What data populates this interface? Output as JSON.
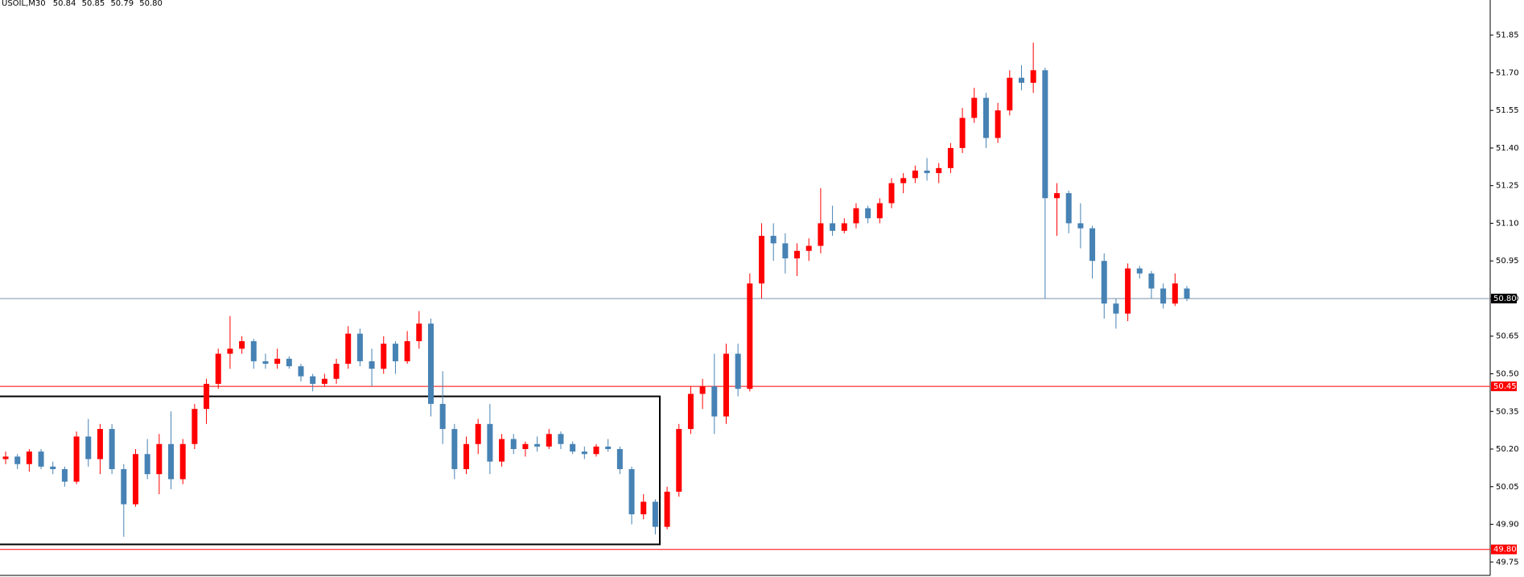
{
  "chart_data": {
    "type": "candlestick",
    "header": {
      "symbol": "USOIL,M30",
      "ohlc": [
        "50.84",
        "50.85",
        "50.79",
        "50.80"
      ]
    },
    "up_color": "#ff0000",
    "down_color": "#4682b4",
    "ylim": [
      49.69,
      51.99
    ],
    "yticks": [
      49.75,
      {
        "value": 49.9,
        "label": "49.90"
      },
      50.05,
      {
        "value": 50.2,
        "label": "50.20"
      },
      50.35,
      {
        "value": 50.5,
        "label": "50.50"
      },
      50.65,
      {
        "value": 50.8,
        "label": "50.80"
      },
      50.95,
      {
        "value": 51.1,
        "label": "51.10"
      },
      51.25,
      {
        "value": 51.4,
        "label": "51.40"
      },
      51.55,
      {
        "value": 51.7,
        "label": "51.70"
      },
      51.85
    ],
    "levels": [
      {
        "value": 50.45,
        "color": "#ff0000"
      },
      {
        "value": 49.8,
        "label": "49.80",
        "color": "#ff0000"
      }
    ],
    "current_price": {
      "value": 50.8,
      "label": "50.80",
      "color": "#7c93a8"
    },
    "rectangle": {
      "top": 50.41,
      "bottom": 49.82
    },
    "candles": [
      [
        50.16,
        50.19,
        50.14,
        50.17
      ],
      [
        50.17,
        50.18,
        50.12,
        50.14
      ],
      [
        50.14,
        50.2,
        50.11,
        50.19
      ],
      [
        50.19,
        50.2,
        50.12,
        50.13
      ],
      [
        50.13,
        50.15,
        50.1,
        50.12
      ],
      [
        50.12,
        50.13,
        50.05,
        50.07
      ],
      [
        50.07,
        50.27,
        50.06,
        50.25
      ],
      [
        50.25,
        50.32,
        50.13,
        50.16
      ],
      [
        50.16,
        50.3,
        50.1,
        50.28
      ],
      [
        50.28,
        50.3,
        50.1,
        50.12
      ],
      [
        50.12,
        50.14,
        49.85,
        49.98
      ],
      [
        49.98,
        50.2,
        49.97,
        50.18
      ],
      [
        50.18,
        50.24,
        50.08,
        50.1
      ],
      [
        50.1,
        50.26,
        50.02,
        50.22
      ],
      [
        50.22,
        50.35,
        50.04,
        50.08
      ],
      [
        50.08,
        50.24,
        50.06,
        50.22
      ],
      [
        50.22,
        50.38,
        50.2,
        50.36
      ],
      [
        50.36,
        50.48,
        50.3,
        50.46
      ],
      [
        50.46,
        50.6,
        50.44,
        50.58
      ],
      [
        50.58,
        50.73,
        50.52,
        50.6
      ],
      [
        50.6,
        50.65,
        50.58,
        50.63
      ],
      [
        50.63,
        50.64,
        50.52,
        50.55
      ],
      [
        50.55,
        50.58,
        50.52,
        50.54
      ],
      [
        50.54,
        50.6,
        50.52,
        50.56
      ],
      [
        50.56,
        50.57,
        50.52,
        50.53
      ],
      [
        50.53,
        50.54,
        50.47,
        50.49
      ],
      [
        50.49,
        50.5,
        50.43,
        50.46
      ],
      [
        50.46,
        50.5,
        50.45,
        50.48
      ],
      [
        50.48,
        50.56,
        50.46,
        50.54
      ],
      [
        50.54,
        50.69,
        50.52,
        50.66
      ],
      [
        50.66,
        50.68,
        50.53,
        50.55
      ],
      [
        50.55,
        50.6,
        50.45,
        50.52
      ],
      [
        50.52,
        50.65,
        50.5,
        50.62
      ],
      [
        50.62,
        50.63,
        50.5,
        50.55
      ],
      [
        50.55,
        50.67,
        50.54,
        50.63
      ],
      [
        50.63,
        50.75,
        50.6,
        50.7
      ],
      [
        50.7,
        50.72,
        50.33,
        50.38
      ],
      [
        50.38,
        50.51,
        50.22,
        50.28
      ],
      [
        50.28,
        50.3,
        50.08,
        50.12
      ],
      [
        50.12,
        50.25,
        50.1,
        50.22
      ],
      [
        50.22,
        50.32,
        50.18,
        50.3
      ],
      [
        50.3,
        50.38,
        50.1,
        50.15
      ],
      [
        50.15,
        50.26,
        50.13,
        50.24
      ],
      [
        50.24,
        50.26,
        50.18,
        50.2
      ],
      [
        50.2,
        50.23,
        50.17,
        50.22
      ],
      [
        50.22,
        50.25,
        50.19,
        50.21
      ],
      [
        50.21,
        50.28,
        50.2,
        50.26
      ],
      [
        50.26,
        50.27,
        50.2,
        50.22
      ],
      [
        50.22,
        50.23,
        50.18,
        50.19
      ],
      [
        50.19,
        50.21,
        50.16,
        50.18
      ],
      [
        50.18,
        50.22,
        50.17,
        50.21
      ],
      [
        50.21,
        50.24,
        50.19,
        50.2
      ],
      [
        50.2,
        50.21,
        50.1,
        50.12
      ],
      [
        50.12,
        50.13,
        49.9,
        49.94
      ],
      [
        49.94,
        50.02,
        49.92,
        49.99
      ],
      [
        49.99,
        50.0,
        49.86,
        49.89
      ],
      [
        49.89,
        50.05,
        49.88,
        50.03
      ],
      [
        50.03,
        50.3,
        50.01,
        50.28
      ],
      [
        50.28,
        50.45,
        50.26,
        50.42
      ],
      [
        50.42,
        50.48,
        50.36,
        50.45
      ],
      [
        50.45,
        50.58,
        50.26,
        50.33
      ],
      [
        50.33,
        50.62,
        50.3,
        50.58
      ],
      [
        50.58,
        50.62,
        50.41,
        50.44
      ],
      [
        50.44,
        50.9,
        50.43,
        50.86
      ],
      [
        50.86,
        51.1,
        50.8,
        51.05
      ],
      [
        51.05,
        51.1,
        50.95,
        51.02
      ],
      [
        51.02,
        51.06,
        50.9,
        50.96
      ],
      [
        50.96,
        51.02,
        50.89,
        50.99
      ],
      [
        50.99,
        51.04,
        50.95,
        51.01
      ],
      [
        51.01,
        51.24,
        50.98,
        51.1
      ],
      [
        51.1,
        51.17,
        51.05,
        51.07
      ],
      [
        51.07,
        51.12,
        51.06,
        51.1
      ],
      [
        51.1,
        51.18,
        51.08,
        51.16
      ],
      [
        51.16,
        51.17,
        51.1,
        51.12
      ],
      [
        51.12,
        51.2,
        51.1,
        51.18
      ],
      [
        51.18,
        51.28,
        51.16,
        51.26
      ],
      [
        51.26,
        51.3,
        51.22,
        51.28
      ],
      [
        51.28,
        51.33,
        51.26,
        51.31
      ],
      [
        51.31,
        51.36,
        51.27,
        51.3
      ],
      [
        51.3,
        51.34,
        51.26,
        51.32
      ],
      [
        51.32,
        51.42,
        51.3,
        51.4
      ],
      [
        51.4,
        51.56,
        51.38,
        51.52
      ],
      [
        51.52,
        51.64,
        51.5,
        51.6
      ],
      [
        51.6,
        51.62,
        51.4,
        51.44
      ],
      [
        51.44,
        51.58,
        51.42,
        51.55
      ],
      [
        51.55,
        51.71,
        51.53,
        51.68
      ],
      [
        51.68,
        51.73,
        51.63,
        51.66
      ],
      [
        51.66,
        51.82,
        51.62,
        51.71
      ],
      [
        51.71,
        51.72,
        50.8,
        51.2
      ],
      [
        51.2,
        51.26,
        51.05,
        51.22
      ],
      [
        51.22,
        51.23,
        51.06,
        51.1
      ],
      [
        51.1,
        51.18,
        51.0,
        51.08
      ],
      [
        51.08,
        51.09,
        50.88,
        50.95
      ],
      [
        50.95,
        50.98,
        50.72,
        50.78
      ],
      [
        50.78,
        50.8,
        50.68,
        50.74
      ],
      [
        50.74,
        50.94,
        50.71,
        50.92
      ],
      [
        50.92,
        50.93,
        50.88,
        50.9
      ],
      [
        50.9,
        50.91,
        50.8,
        50.84
      ],
      [
        50.84,
        50.86,
        50.76,
        50.78
      ],
      [
        50.78,
        50.9,
        50.77,
        50.86
      ],
      [
        50.84,
        50.85,
        50.79,
        50.8
      ]
    ]
  }
}
